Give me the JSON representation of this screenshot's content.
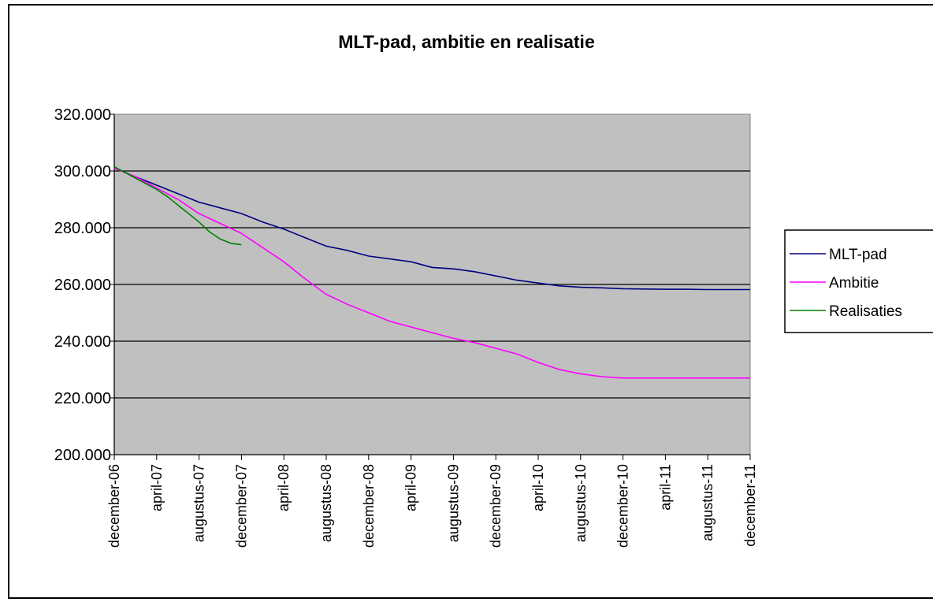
{
  "chart_data": {
    "type": "line",
    "title": "MLT-pad, ambitie en realisatie",
    "xlabel": "",
    "ylabel": "",
    "ylim": [
      200000,
      320000
    ],
    "yticks": [
      200000,
      220000,
      240000,
      260000,
      280000,
      300000,
      320000
    ],
    "ytick_labels": [
      "200.000",
      "220.000",
      "240.000",
      "260.000",
      "280.000",
      "300.000",
      "320.000"
    ],
    "x_dates": [
      "2006-12",
      "2007-04",
      "2007-08",
      "2007-12",
      "2008-04",
      "2008-08",
      "2008-12",
      "2009-04",
      "2009-08",
      "2009-12",
      "2010-04",
      "2010-08",
      "2010-12",
      "2011-04",
      "2011-08",
      "2011-12"
    ],
    "xtick_labels": [
      "december-06",
      "april-07",
      "augustus-07",
      "december-07",
      "april-08",
      "augustus-08",
      "december-08",
      "april-09",
      "augustus-09",
      "december-09",
      "april-10",
      "augustus-10",
      "december-10",
      "april-11",
      "augustus-11",
      "december-11"
    ],
    "grid": true,
    "legend_position": "right",
    "background_color": "#c0c0c0",
    "series": [
      {
        "name": "MLT-pad",
        "color": "#000080",
        "x": [
          "2006-12",
          "2007-02",
          "2007-04",
          "2007-06",
          "2007-08",
          "2007-10",
          "2007-12",
          "2008-02",
          "2008-04",
          "2008-06",
          "2008-08",
          "2008-10",
          "2008-12",
          "2009-02",
          "2009-04",
          "2009-06",
          "2009-08",
          "2009-10",
          "2009-12",
          "2010-02",
          "2010-04",
          "2010-06",
          "2010-08",
          "2010-10",
          "2010-12",
          "2011-02",
          "2011-04",
          "2011-06",
          "2011-08",
          "2011-10",
          "2011-12"
        ],
        "values": [
          301000,
          298000,
          295000,
          292000,
          289000,
          287000,
          285000,
          282000,
          279500,
          276500,
          273500,
          272000,
          270000,
          269000,
          268000,
          266000,
          265500,
          264500,
          263000,
          261500,
          260500,
          259500,
          259000,
          258800,
          258500,
          258400,
          258300,
          258300,
          258200,
          258200,
          258200
        ]
      },
      {
        "name": "Ambitie",
        "color": "#ff00ff",
        "x": [
          "2006-12",
          "2007-02",
          "2007-04",
          "2007-06",
          "2007-08",
          "2007-10",
          "2007-12",
          "2008-02",
          "2008-04",
          "2008-06",
          "2008-08",
          "2008-10",
          "2008-12",
          "2009-02",
          "2009-04",
          "2009-06",
          "2009-08",
          "2009-10",
          "2009-12",
          "2010-02",
          "2010-04",
          "2010-06",
          "2010-08",
          "2010-10",
          "2010-12",
          "2011-02",
          "2011-04",
          "2011-06",
          "2011-08",
          "2011-10",
          "2011-12"
        ],
        "values": [
          301000,
          298000,
          294000,
          290000,
          285000,
          281500,
          278000,
          273000,
          268000,
          262000,
          256500,
          253000,
          250000,
          247000,
          245000,
          243000,
          241000,
          239500,
          237500,
          235500,
          232500,
          230000,
          228500,
          227500,
          227000,
          227000,
          227000,
          227000,
          227000,
          227000,
          227000
        ]
      },
      {
        "name": "Realisaties",
        "color": "#008000",
        "x": [
          "2006-12",
          "2007-01",
          "2007-02",
          "2007-03",
          "2007-04",
          "2007-05",
          "2007-06",
          "2007-07",
          "2007-08",
          "2007-09",
          "2007-10",
          "2007-11",
          "2007-12"
        ],
        "values": [
          301500,
          299500,
          297500,
          295500,
          293500,
          291000,
          288000,
          285000,
          282000,
          278500,
          276000,
          274500,
          274000
        ]
      }
    ]
  }
}
